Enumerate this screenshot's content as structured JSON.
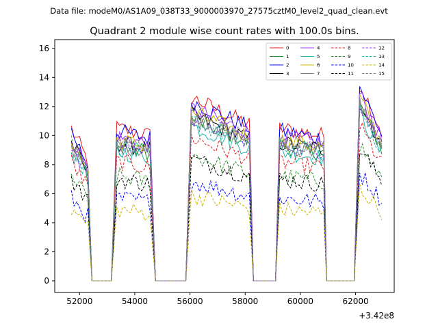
{
  "chart_data": {
    "type": "line",
    "suptitle": "Data file: modeM0/AS1A09_038T33_9000003970_27575cztM0_level2_quad_clean.evt",
    "title": "Quadrant 2 module wise count rates with 100.0s bins.",
    "xlabel": "",
    "ylabel": "",
    "x_offset_label": "+3.42e8",
    "xlim": [
      51100,
      63400
    ],
    "ylim": [
      -0.8,
      16.6
    ],
    "xticks": [
      52000,
      54000,
      56000,
      58000,
      60000,
      62000
    ],
    "xtick_labels": [
      "52000",
      "54000",
      "56000",
      "58000",
      "60000",
      "62000"
    ],
    "yticks": [
      0,
      2,
      4,
      6,
      8,
      10,
      12,
      14,
      16
    ],
    "ytick_labels": [
      "0",
      "2",
      "4",
      "6",
      "8",
      "10",
      "12",
      "14",
      "16"
    ],
    "legend_position": "top-right",
    "segments": [
      {
        "start": 51700,
        "end": 52300,
        "level": 1.0,
        "tail": 0.78
      },
      {
        "start": 53350,
        "end": 54600,
        "level": 1.0,
        "tail": 0.95
      },
      {
        "start": 56050,
        "end": 58200,
        "level": 1.2,
        "tail": 0.85
      },
      {
        "start": 59250,
        "end": 60850,
        "level": 1.0,
        "tail": 0.95
      },
      {
        "start": 62150,
        "end": 62950,
        "level": 1.3,
        "tail": 0.75
      }
    ],
    "gaps_at_zero": [
      [
        52450,
        53200
      ],
      [
        54750,
        55900
      ],
      [
        58300,
        59100
      ],
      [
        60950,
        62000
      ]
    ],
    "series": [
      {
        "name": "0",
        "color": "#e41a1c",
        "style": "solid",
        "level": 10.5
      },
      {
        "name": "1",
        "color": "#228b22",
        "style": "solid",
        "level": 9.3
      },
      {
        "name": "2",
        "color": "#0000ff",
        "style": "solid",
        "level": 10.3
      },
      {
        "name": "3",
        "color": "#000000",
        "style": "solid",
        "level": 9.5
      },
      {
        "name": "4",
        "color": "#9b30ff",
        "style": "solid",
        "level": 9.9
      },
      {
        "name": "5",
        "color": "#20b2aa",
        "style": "solid",
        "level": 8.9
      },
      {
        "name": "6",
        "color": "#c8b400",
        "style": "solid",
        "level": 9.7
      },
      {
        "name": "7",
        "color": "#808080",
        "style": "solid",
        "level": 9.4
      },
      {
        "name": "8",
        "color": "#e41a1c",
        "style": "dashed",
        "level": 8.2
      },
      {
        "name": "9",
        "color": "#228b22",
        "style": "dashed",
        "level": 7.2
      },
      {
        "name": "10",
        "color": "#0000ff",
        "style": "dashed",
        "level": 5.7
      },
      {
        "name": "11",
        "color": "#000000",
        "style": "dashed",
        "level": 7.0
      },
      {
        "name": "12",
        "color": "#9b30ff",
        "style": "dashed",
        "level": 9.4
      },
      {
        "name": "13",
        "color": "#20b2aa",
        "style": "dashed",
        "level": 9.2
      },
      {
        "name": "14",
        "color": "#c8b400",
        "style": "dashed",
        "level": 4.9
      },
      {
        "name": "15",
        "color": "#808080",
        "style": "dashed",
        "level": 9.5
      }
    ]
  }
}
